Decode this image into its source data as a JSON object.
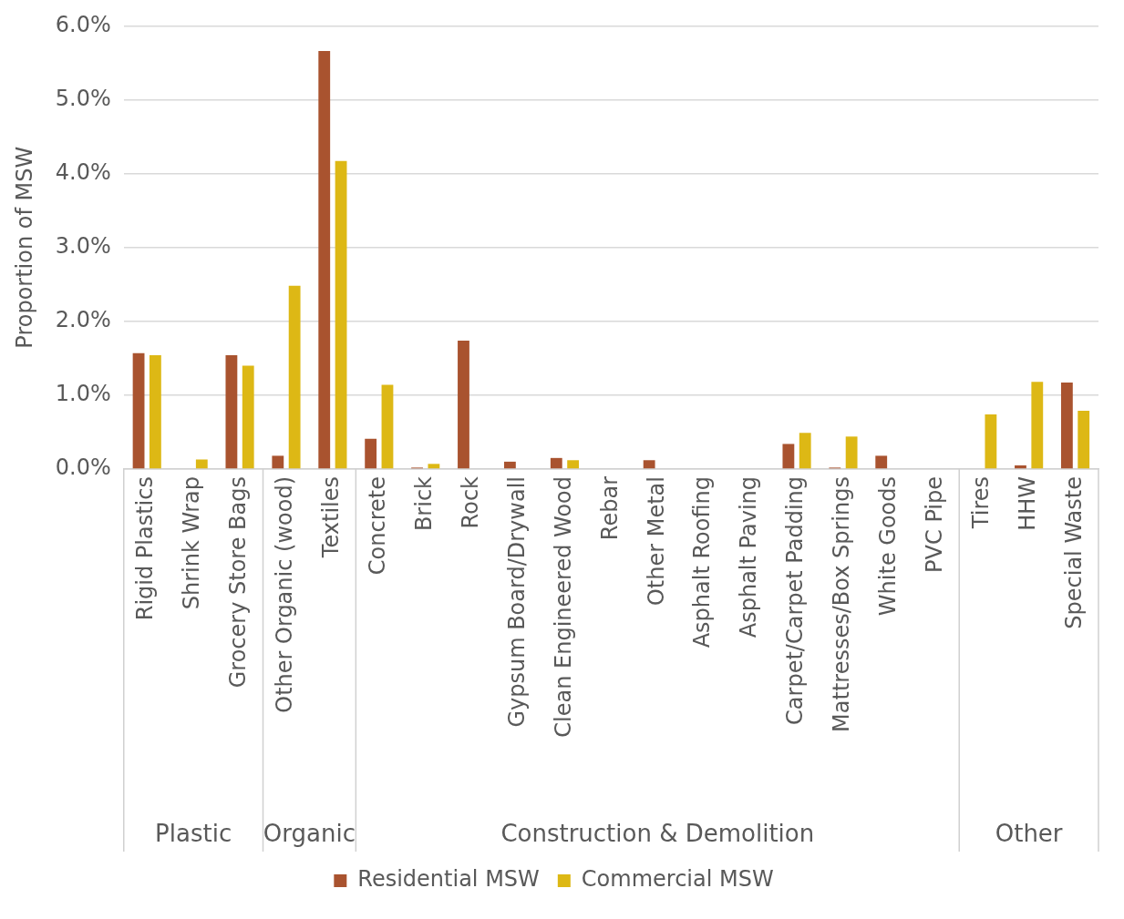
{
  "chart_data": {
    "type": "bar",
    "ylabel": "Proportion of MSW",
    "categories": [
      "Rigid Plastics",
      "Shrink Wrap",
      "Grocery Store Bags",
      "Other Organic (wood)",
      "Textiles",
      "Concrete",
      "Brick",
      "Rock",
      "Gypsum Board/Drywall",
      "Clean Engineered Wood",
      "Rebar",
      "Other Metal",
      "Asphalt Roofing",
      "Asphalt Paving",
      "Carpet/Carpet Padding",
      "Mattresses/Box Springs",
      "White Goods",
      "PVC Pipe",
      "Tires",
      "HHW",
      "Special Waste"
    ],
    "series": [
      {
        "name": "Residential MSW",
        "color": "#a9532f",
        "values": [
          1.57,
          0,
          1.54,
          0.18,
          5.66,
          0.41,
          0.02,
          1.74,
          0.1,
          0.15,
          0,
          0.12,
          0,
          0,
          0.34,
          0.02,
          0.18,
          0,
          0,
          0.05,
          1.17
        ]
      },
      {
        "name": "Commercial MSW",
        "color": "#ddb815",
        "values": [
          1.54,
          0.13,
          1.4,
          2.48,
          4.17,
          1.14,
          0.07,
          0,
          0,
          0.12,
          0,
          0,
          0,
          0,
          0.49,
          0.44,
          0,
          0,
          0.74,
          1.18,
          0.79
        ]
      }
    ],
    "ylim": [
      0,
      6
    ],
    "yticks": [
      {
        "value": 0,
        "label": "0.0%"
      },
      {
        "value": 1,
        "label": "1.0%"
      },
      {
        "value": 2,
        "label": "2.0%"
      },
      {
        "value": 3,
        "label": "3.0%"
      },
      {
        "value": 4,
        "label": "4.0%"
      },
      {
        "value": 5,
        "label": "5.0%"
      },
      {
        "value": 6,
        "label": "6.0%"
      }
    ],
    "annotations": [
      "Plastic",
      "Organic",
      "Construction & Demolition",
      "Other"
    ],
    "grid": "y",
    "legend": "bottom"
  }
}
